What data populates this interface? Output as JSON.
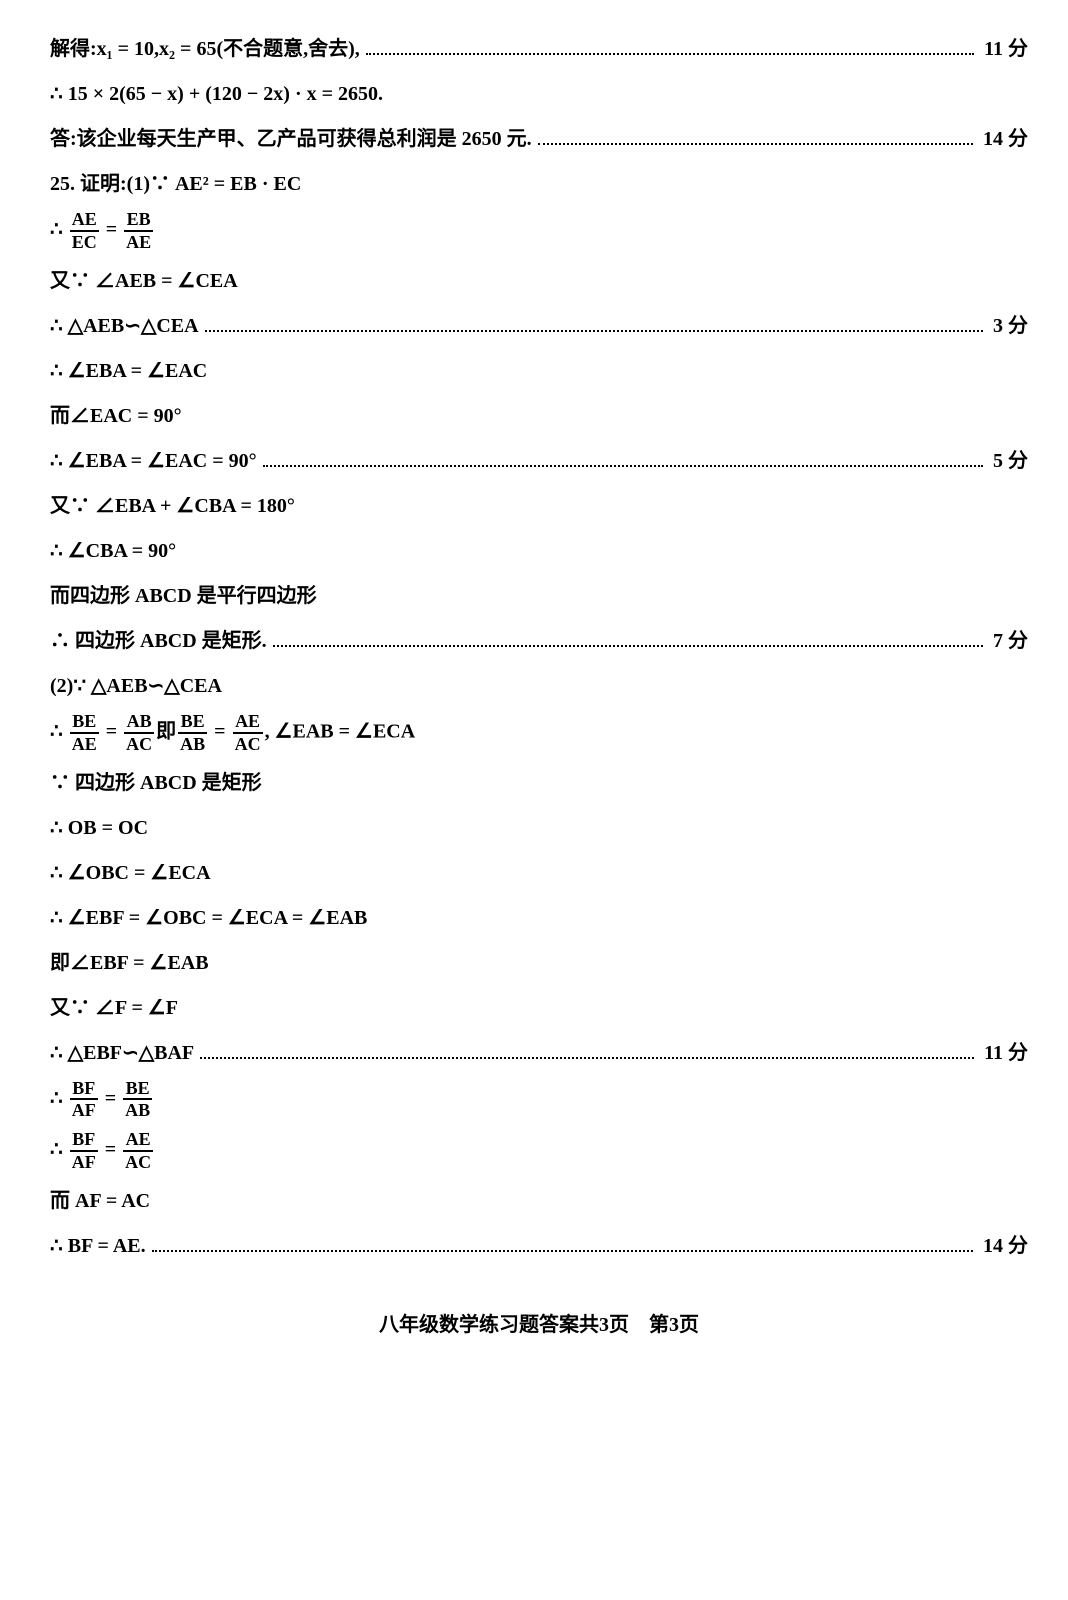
{
  "lines": [
    {
      "type": "plain",
      "text": "解得:x₁ = 10,x₂ = 65(不合题意,舍去),",
      "score": "11 分"
    },
    {
      "type": "plain",
      "text": "∴ 15 × 2(65 − x) + (120 − 2x) · x = 2650."
    },
    {
      "type": "plain",
      "text": "答:该企业每天生产甲、乙产品可获得总利润是 2650 元.",
      "score": "14 分"
    },
    {
      "type": "plain",
      "text": "25. 证明:(1)∵ AE² = EB · EC"
    },
    {
      "type": "frac",
      "prefix": "∴ ",
      "fracs": [
        {
          "n": "AE",
          "d": "EC"
        },
        " = ",
        {
          "n": "EB",
          "d": "AE"
        }
      ]
    },
    {
      "type": "plain",
      "text": "又∵ ∠AEB = ∠CEA"
    },
    {
      "type": "plain",
      "text": "∴ △AEB∽△CEA",
      "score": "3 分"
    },
    {
      "type": "plain",
      "text": "∴ ∠EBA = ∠EAC"
    },
    {
      "type": "plain",
      "text": "而∠EAC = 90°"
    },
    {
      "type": "plain",
      "text": "∴ ∠EBA = ∠EAC = 90°",
      "score": "5 分"
    },
    {
      "type": "plain",
      "text": "又∵ ∠EBA + ∠CBA = 180°"
    },
    {
      "type": "plain",
      "text": "∴ ∠CBA = 90°"
    },
    {
      "type": "plain",
      "text": "而四边形 ABCD 是平行四边形"
    },
    {
      "type": "plain",
      "text": "∴ 四边形 ABCD 是矩形.",
      "score": "7 分"
    },
    {
      "type": "plain",
      "text": "(2)∵ △AEB∽△CEA"
    },
    {
      "type": "frac",
      "prefix": "∴ ",
      "fracs": [
        {
          "n": "BE",
          "d": "AE"
        },
        " = ",
        {
          "n": "AB",
          "d": "AC"
        },
        "即",
        {
          "n": "BE",
          "d": "AB"
        },
        " = ",
        {
          "n": "AE",
          "d": "AC"
        },
        ", ∠EAB = ∠ECA"
      ]
    },
    {
      "type": "plain",
      "text": "∵ 四边形 ABCD 是矩形"
    },
    {
      "type": "plain",
      "text": "∴ OB = OC"
    },
    {
      "type": "plain",
      "text": "∴ ∠OBC = ∠ECA"
    },
    {
      "type": "plain",
      "text": "∴ ∠EBF = ∠OBC = ∠ECA = ∠EAB"
    },
    {
      "type": "plain",
      "text": "即∠EBF = ∠EAB"
    },
    {
      "type": "plain",
      "text": "又∵ ∠F = ∠F"
    },
    {
      "type": "plain",
      "text": "∴ △EBF∽△BAF",
      "score": "11 分"
    },
    {
      "type": "frac",
      "prefix": "∴ ",
      "fracs": [
        {
          "n": "BF",
          "d": "AF"
        },
        " = ",
        {
          "n": "BE",
          "d": "AB"
        }
      ]
    },
    {
      "type": "frac",
      "prefix": "∴ ",
      "fracs": [
        {
          "n": "BF",
          "d": "AF"
        },
        " = ",
        {
          "n": "AE",
          "d": "AC"
        }
      ]
    },
    {
      "type": "plain",
      "text": "而 AF = AC"
    },
    {
      "type": "plain",
      "text": "∴ BF = AE.",
      "score": "14 分"
    }
  ],
  "footer": "八年级数学练习题答案共3页　第3页"
}
